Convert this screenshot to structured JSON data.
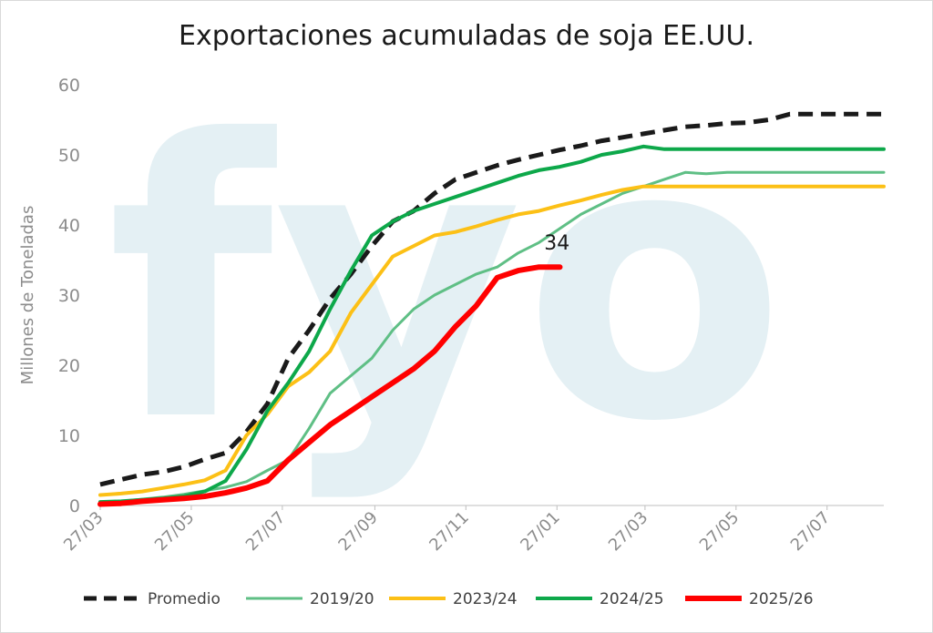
{
  "title": "Exportaciones acumuladas de soja EE.UU.",
  "watermark": "fyo",
  "chart_data": {
    "type": "line",
    "title": "Exportaciones acumuladas de soja EE.UU.",
    "xlabel": "",
    "ylabel": "Millones de Toneladas",
    "ylim": [
      0,
      60
    ],
    "yticks": [
      0,
      10,
      20,
      30,
      40,
      50,
      60
    ],
    "xlim": [
      0,
      525
    ],
    "xtick_labels": [
      "27/03",
      "27/05",
      "27/07",
      "27/09",
      "27/11",
      "27/01",
      "27/03",
      "27/05",
      "27/07"
    ],
    "xtick_positions": [
      0,
      61,
      122,
      184,
      245,
      306,
      365,
      426,
      487
    ],
    "x_unit": "días desde 27/03",
    "grid": false,
    "legend_position": "bottom",
    "annotations": [
      {
        "text": "34",
        "series": "2025/26",
        "x": 306,
        "y": 36.5
      }
    ],
    "series": [
      {
        "name": "Promedio",
        "color": "#1a1a1a",
        "dash": true,
        "width": 5,
        "x": [
          0,
          14,
          28,
          42,
          56,
          70,
          84,
          98,
          112,
          126,
          140,
          154,
          168,
          182,
          196,
          210,
          224,
          238,
          252,
          266,
          280,
          294,
          308,
          322,
          336,
          350,
          364,
          378,
          392,
          406,
          420,
          434,
          448,
          462,
          476,
          490,
          504,
          525
        ],
        "y": [
          3.0,
          3.7,
          4.4,
          4.8,
          5.5,
          6.6,
          7.5,
          10.5,
          14.5,
          21.0,
          25.0,
          29.5,
          33.0,
          37.0,
          40.5,
          42.0,
          44.5,
          46.5,
          47.5,
          48.5,
          49.3,
          50.0,
          50.7,
          51.3,
          52.0,
          52.5,
          53.0,
          53.5,
          54.0,
          54.2,
          54.5,
          54.6,
          55.0,
          55.8,
          55.8,
          55.8,
          55.8,
          55.8
        ]
      },
      {
        "name": "2019/20",
        "color": "#5fbf85",
        "dash": false,
        "width": 3,
        "x": [
          0,
          14,
          28,
          42,
          56,
          70,
          84,
          98,
          112,
          126,
          140,
          154,
          168,
          182,
          196,
          210,
          224,
          238,
          252,
          266,
          280,
          294,
          308,
          322,
          336,
          350,
          364,
          378,
          392,
          406,
          420,
          434,
          448,
          462,
          476,
          490,
          504,
          525
        ],
        "y": [
          0.3,
          0.6,
          0.9,
          1.2,
          1.6,
          2.1,
          2.6,
          3.4,
          5.0,
          6.5,
          11.0,
          16.0,
          18.5,
          21.0,
          25.0,
          28.0,
          30.0,
          31.5,
          33.0,
          34.0,
          36.0,
          37.5,
          39.5,
          41.5,
          43.0,
          44.5,
          45.5,
          46.5,
          47.5,
          47.3,
          47.5,
          47.5,
          47.5,
          47.5,
          47.5,
          47.5,
          47.5,
          47.5
        ]
      },
      {
        "name": "2023/24",
        "color": "#fcc016",
        "dash": false,
        "width": 4,
        "x": [
          0,
          14,
          28,
          42,
          56,
          70,
          84,
          98,
          112,
          126,
          140,
          154,
          168,
          182,
          196,
          210,
          224,
          238,
          252,
          266,
          280,
          294,
          308,
          322,
          336,
          350,
          364,
          378,
          392,
          406,
          420,
          434,
          448,
          462,
          476,
          490,
          504,
          525
        ],
        "y": [
          1.5,
          1.7,
          2.0,
          2.5,
          3.0,
          3.6,
          5.0,
          10.0,
          13.0,
          17.0,
          19.0,
          22.0,
          27.5,
          31.5,
          35.5,
          37.0,
          38.5,
          39.0,
          39.8,
          40.7,
          41.5,
          42.0,
          42.8,
          43.5,
          44.3,
          45.0,
          45.5,
          45.5,
          45.5,
          45.5,
          45.5,
          45.5,
          45.5,
          45.5,
          45.5,
          45.5,
          45.5,
          45.5
        ]
      },
      {
        "name": "2024/25",
        "color": "#0da84a",
        "dash": false,
        "width": 4,
        "x": [
          0,
          14,
          28,
          42,
          56,
          70,
          84,
          98,
          112,
          126,
          140,
          154,
          168,
          182,
          196,
          210,
          224,
          238,
          252,
          266,
          280,
          294,
          308,
          322,
          336,
          350,
          364,
          378,
          392,
          406,
          420,
          434,
          448,
          462,
          476,
          490,
          504,
          525
        ],
        "y": [
          0.5,
          0.6,
          0.8,
          1.0,
          1.3,
          2.0,
          3.5,
          8.0,
          13.5,
          17.5,
          22.0,
          28.0,
          33.5,
          38.5,
          40.5,
          42.0,
          43.0,
          44.0,
          45.0,
          46.0,
          47.0,
          47.8,
          48.3,
          49.0,
          50.0,
          50.5,
          51.2,
          50.8,
          50.8,
          50.8,
          50.8,
          50.8,
          50.8,
          50.8,
          50.8,
          50.8,
          50.8,
          50.8
        ]
      },
      {
        "name": "2025/26",
        "color": "#ff0000",
        "dash": false,
        "width": 6,
        "x": [
          0,
          14,
          28,
          42,
          56,
          70,
          84,
          98,
          112,
          126,
          140,
          154,
          168,
          182,
          196,
          210,
          224,
          238,
          252,
          266,
          280,
          294,
          308
        ],
        "y": [
          0.2,
          0.3,
          0.6,
          0.8,
          1.0,
          1.3,
          1.8,
          2.5,
          3.5,
          6.5,
          9.0,
          11.5,
          13.5,
          15.5,
          17.5,
          19.5,
          22.0,
          25.5,
          28.5,
          32.5,
          33.5,
          34.0,
          34.0
        ]
      }
    ]
  }
}
